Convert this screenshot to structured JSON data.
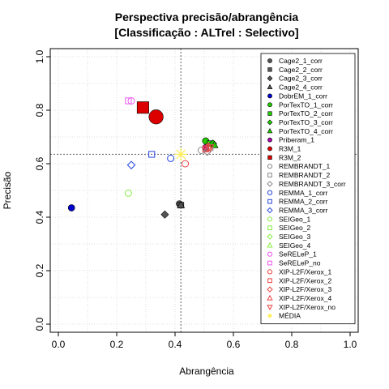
{
  "chart_data": {
    "type": "scatter",
    "title": "Perspectiva precisão/abrangência",
    "subtitle": "[Classificação : ALTrel : Selectivo]",
    "xlabel": "Abrangência",
    "ylabel": "Precisão",
    "xlim": [
      0,
      1
    ],
    "ylim": [
      0,
      1
    ],
    "xticks": [
      "0.0",
      "0.2",
      "0.4",
      "0.6",
      "0.8",
      "1.0"
    ],
    "yticks": [
      "0.0",
      "0.2",
      "0.4",
      "0.6",
      "0.8",
      "1.0"
    ],
    "grid": true,
    "legend_position": "top-right",
    "reference_lines": {
      "x": 0.42,
      "y": 0.635
    },
    "series": [
      {
        "name": "Cage2_1_corr",
        "shape": "circle",
        "filled": true,
        "color": "#555555",
        "points": [
          [
            0.415,
            0.45
          ]
        ]
      },
      {
        "name": "Cage2_2_corr",
        "shape": "square",
        "filled": true,
        "color": "#555555",
        "points": [
          [
            0.42,
            0.445
          ]
        ]
      },
      {
        "name": "Cage2_3_corr",
        "shape": "diamond",
        "filled": true,
        "color": "#555555",
        "points": [
          [
            0.365,
            0.41
          ]
        ]
      },
      {
        "name": "Cage2_4_corr",
        "shape": "triangle",
        "filled": true,
        "color": "#555555",
        "points": [
          [
            0.42,
            0.445
          ]
        ]
      },
      {
        "name": "DobrEM_1_corr",
        "shape": "circle",
        "filled": true,
        "color": "#0000cc",
        "points": [
          [
            0.045,
            0.435
          ]
        ]
      },
      {
        "name": "PorTexTO_1_corr",
        "shape": "circle",
        "filled": true,
        "color": "#22cc00",
        "points": [
          [
            0.505,
            0.685
          ]
        ]
      },
      {
        "name": "PorTexTO_2_corr",
        "shape": "square",
        "filled": true,
        "color": "#22cc00",
        "points": [
          [
            0.52,
            0.675
          ]
        ]
      },
      {
        "name": "PorTexTO_3_corr",
        "shape": "diamond",
        "filled": true,
        "color": "#22cc00",
        "points": [
          [
            0.53,
            0.675
          ]
        ]
      },
      {
        "name": "PorTexTO_4_corr",
        "shape": "triangle",
        "filled": true,
        "color": "#22cc00",
        "points": [
          [
            0.535,
            0.67
          ]
        ]
      },
      {
        "name": "Priberam_1",
        "shape": "circle",
        "filled": true,
        "color": "#aa00aa",
        "points": [
          [
            0.505,
            0.66
          ]
        ]
      },
      {
        "name": "R3M_1",
        "shape": "circle",
        "filled": true,
        "color": "#dd0000",
        "size": 2.2,
        "points": [
          [
            0.335,
            0.775
          ]
        ]
      },
      {
        "name": "R3M_2",
        "shape": "square",
        "filled": true,
        "color": "#dd0000",
        "size": 2.0,
        "points": [
          [
            0.29,
            0.81
          ]
        ]
      },
      {
        "name": "REMBRANDT_1",
        "shape": "circle",
        "filled": false,
        "color": "#888888",
        "points": [
          [
            0.49,
            0.65
          ]
        ]
      },
      {
        "name": "REMBRANDT_2",
        "shape": "square",
        "filled": false,
        "color": "#888888",
        "points": [
          [
            0.52,
            0.66
          ]
        ]
      },
      {
        "name": "REMBRANDT_3_corr",
        "shape": "diamond",
        "filled": false,
        "color": "#888888",
        "points": [
          [
            0.51,
            0.645
          ]
        ]
      },
      {
        "name": "REMMA_1_corr",
        "shape": "circle",
        "filled": false,
        "color": "#2244dd",
        "points": [
          [
            0.385,
            0.62
          ]
        ]
      },
      {
        "name": "REMMA_2_corr",
        "shape": "square",
        "filled": false,
        "color": "#2244dd",
        "points": [
          [
            0.32,
            0.635
          ]
        ]
      },
      {
        "name": "REMMA_3_corr",
        "shape": "diamond",
        "filled": false,
        "color": "#2244dd",
        "points": [
          [
            0.25,
            0.595
          ]
        ]
      },
      {
        "name": "SEIGeo_1",
        "shape": "circle",
        "filled": false,
        "color": "#88ee44",
        "points": [
          [
            0.24,
            0.49
          ]
        ]
      },
      {
        "name": "SEIGeo_2",
        "shape": "square",
        "filled": false,
        "color": "#88ee44",
        "points": []
      },
      {
        "name": "SEIGeo_3",
        "shape": "diamond",
        "filled": false,
        "color": "#88ee44",
        "points": []
      },
      {
        "name": "SEIGeo_4",
        "shape": "triangle",
        "filled": false,
        "color": "#88ee44",
        "points": []
      },
      {
        "name": "SeRELeP_1",
        "shape": "circle",
        "filled": false,
        "color": "#ee55ee",
        "points": [
          [
            0.25,
            0.835
          ]
        ]
      },
      {
        "name": "SeRELeP_no",
        "shape": "square",
        "filled": false,
        "color": "#ee55ee",
        "points": [
          [
            0.24,
            0.835
          ]
        ]
      },
      {
        "name": "XIP-L2F/Xerox_1",
        "shape": "circle",
        "filled": false,
        "color": "#ee4444",
        "points": [
          [
            0.435,
            0.6
          ]
        ]
      },
      {
        "name": "XIP-L2F/Xerox_2",
        "shape": "square",
        "filled": false,
        "color": "#ee4444",
        "points": [
          [
            0.505,
            0.655
          ]
        ]
      },
      {
        "name": "XIP-L2F/Xerox_3",
        "shape": "diamond",
        "filled": false,
        "color": "#ee4444",
        "points": [
          [
            0.51,
            0.66
          ]
        ]
      },
      {
        "name": "XIP-L2F/Xerox_4",
        "shape": "triangle",
        "filled": false,
        "color": "#ee4444",
        "points": [
          [
            0.515,
            0.665
          ]
        ]
      },
      {
        "name": "XIP-L2F/Xerox_no",
        "shape": "triangle-down",
        "filled": false,
        "color": "#ee4444",
        "points": [
          [
            0.52,
            0.66
          ]
        ]
      },
      {
        "name": "MÉDIA",
        "shape": "star",
        "filled": false,
        "color": "#ffee55",
        "size": 2.0,
        "points": [
          [
            0.42,
            0.635
          ]
        ]
      }
    ]
  }
}
